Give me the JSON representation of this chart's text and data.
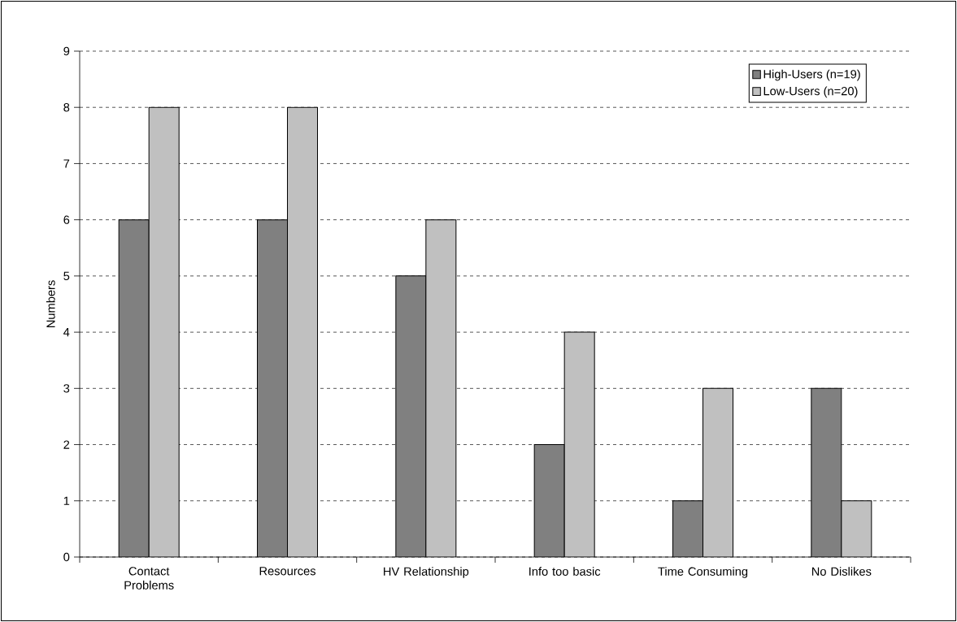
{
  "chart_data": {
    "type": "bar",
    "ylabel": "Numbers",
    "categories": [
      "Contact Problems",
      "Resources",
      "HV Relationship",
      "Info too basic",
      "Time Consuming",
      "No Dislikes"
    ],
    "series": [
      {
        "name": "High-Users (n=19)",
        "color": "#808080",
        "values": [
          6,
          6,
          5,
          2,
          1,
          3
        ]
      },
      {
        "name": "Low-Users (n=20)",
        "color": "#c0c0c0",
        "values": [
          8,
          8,
          6,
          4,
          3,
          1
        ]
      }
    ],
    "ylim": [
      0,
      9
    ],
    "yticks": [
      0,
      1,
      2,
      3,
      4,
      5,
      6,
      7,
      8,
      9
    ],
    "grid": "y",
    "legend": "top right"
  }
}
